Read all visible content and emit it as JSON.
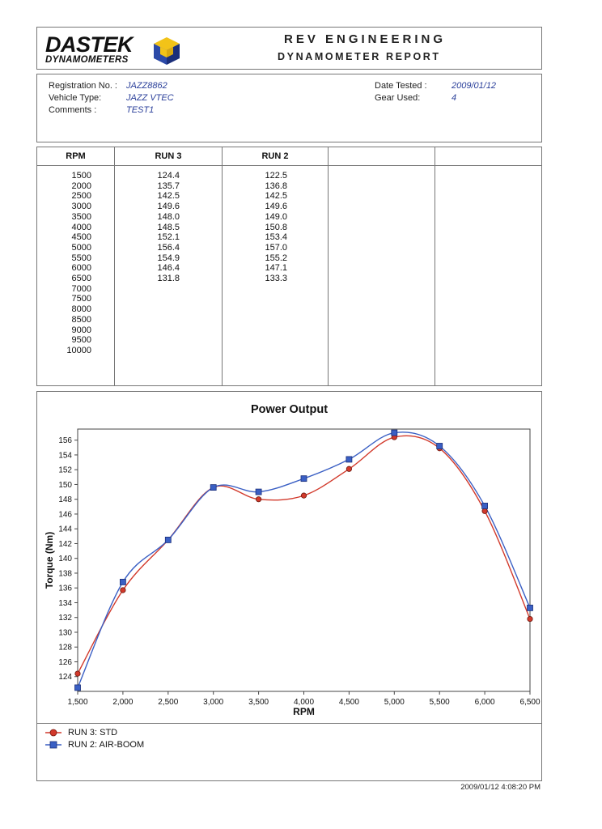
{
  "header": {
    "logo_main": "DASTEK",
    "logo_sub": "DYNAMOMETERS",
    "title": "REV ENGINEERING",
    "subtitle": "DYNAMOMETER REPORT"
  },
  "info": {
    "registration_label": "Registration No. :",
    "registration_value": "JAZZ8862",
    "vehicle_label": "Vehicle Type:",
    "vehicle_value": "JAZZ VTEC",
    "comments_label": "Comments :",
    "comments_value": "TEST1",
    "date_label": "Date Tested :",
    "date_value": "2009/01/12",
    "gear_label": "Gear Used:",
    "gear_value": "4"
  },
  "table": {
    "headers": [
      "RPM",
      "RUN 3",
      "RUN 2",
      "",
      ""
    ],
    "rpm": [
      "1500",
      "2000",
      "2500",
      "3000",
      "3500",
      "4000",
      "4500",
      "5000",
      "5500",
      "6000",
      "6500",
      "7000",
      "7500",
      "8000",
      "8500",
      "9000",
      "9500",
      "10000"
    ],
    "run3": [
      "124.4",
      "135.7",
      "142.5",
      "149.6",
      "148.0",
      "148.5",
      "152.1",
      "156.4",
      "154.9",
      "146.4",
      "131.8"
    ],
    "run2": [
      "122.5",
      "136.8",
      "142.5",
      "149.6",
      "149.0",
      "150.8",
      "153.4",
      "157.0",
      "155.2",
      "147.1",
      "133.3"
    ]
  },
  "chart_data": {
    "type": "line",
    "title": "Power Output",
    "xlabel": "RPM",
    "ylabel": "Torque (Nm)",
    "x": [
      1500,
      2000,
      2500,
      3000,
      3500,
      4000,
      4500,
      5000,
      5500,
      6000,
      6500
    ],
    "x_tick_labels": [
      "1,500",
      "2,000",
      "2,500",
      "3,000",
      "3,500",
      "4,000",
      "4,500",
      "5,000",
      "5,500",
      "6,000",
      "6,500"
    ],
    "y_ticks": [
      124,
      126,
      128,
      130,
      132,
      134,
      136,
      138,
      140,
      142,
      144,
      146,
      148,
      150,
      152,
      154,
      156
    ],
    "xlim": [
      1500,
      6500
    ],
    "ylim": [
      122,
      157.5
    ],
    "grid": false,
    "legend_position": "bottom-left",
    "series": [
      {
        "name": "RUN 3: STD",
        "color": "#d2392b",
        "marker": "circle",
        "values": [
          124.4,
          135.7,
          142.5,
          149.6,
          148.0,
          148.5,
          152.1,
          156.4,
          154.9,
          146.4,
          131.8
        ]
      },
      {
        "name": "RUN 2: AIR-BOOM",
        "color": "#3a5fc4",
        "marker": "square",
        "values": [
          122.5,
          136.8,
          142.5,
          149.6,
          149.0,
          150.8,
          153.4,
          157.0,
          155.2,
          147.1,
          133.3
        ]
      }
    ]
  },
  "footer": {
    "timestamp": "2009/01/12 4:08:20 PM"
  }
}
